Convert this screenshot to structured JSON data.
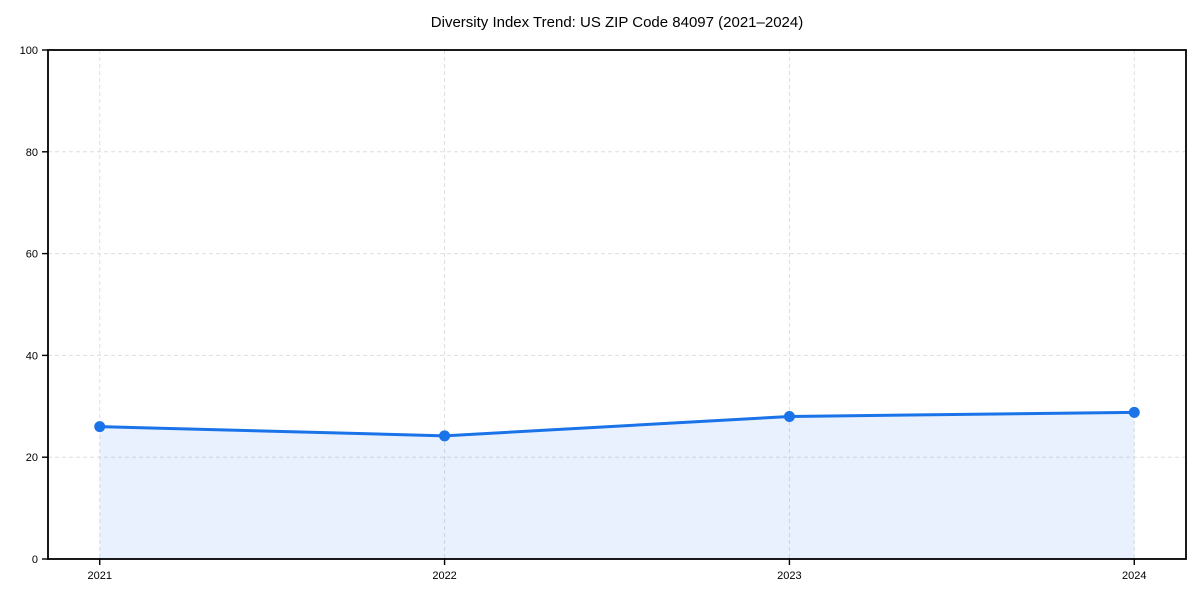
{
  "chart_data": {
    "type": "area",
    "title": "Diversity Index Trend: US ZIP Code 84097 (2021–2024)",
    "x": [
      2021,
      2022,
      2023,
      2024
    ],
    "values": [
      26.0,
      24.2,
      28.0,
      28.8
    ],
    "xlabel": "",
    "ylabel": "",
    "xlim": [
      2020.85,
      2024.15
    ],
    "ylim": [
      0,
      100
    ],
    "yticks": [
      0,
      20,
      40,
      60,
      80,
      100
    ],
    "xtick_labels": [
      "2021",
      "2022",
      "2023",
      "2024"
    ],
    "grid": true,
    "grid_style": "dashed",
    "legend_position": "none",
    "line_color": "#1a73e8",
    "fill_color": "rgba(26,115,232,0.10)",
    "grid_color": "#dedede",
    "spine_color": "#000000",
    "text_color": "#000000"
  }
}
